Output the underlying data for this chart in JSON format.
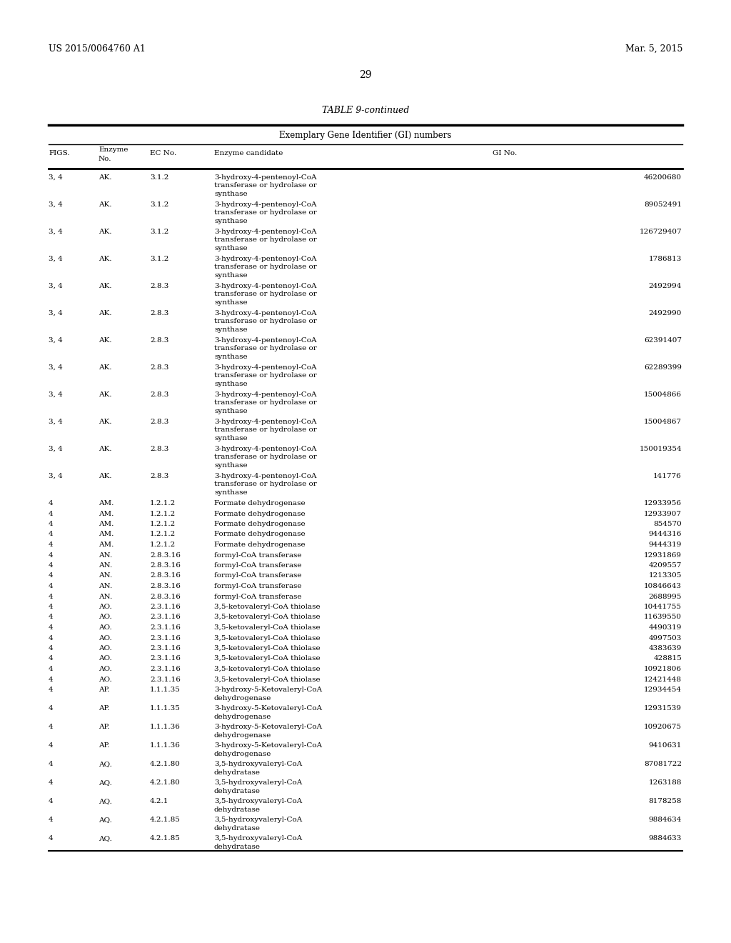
{
  "header_left": "US 2015/0064760 A1",
  "header_right": "Mar. 5, 2015",
  "page_number": "29",
  "table_title": "TABLE 9-continued",
  "table_subtitle": "Exemplary Gene Identifier (GI) numbers",
  "rows": [
    [
      "3, 4",
      "AK.",
      "3.1.2",
      "3-hydroxy-4-pentenoyl-CoA\ntransferase or hydrolase or\nsynthase",
      "46200680"
    ],
    [
      "3, 4",
      "AK.",
      "3.1.2",
      "3-hydroxy-4-pentenoyl-CoA\ntransferase or hydrolase or\nsynthase",
      "89052491"
    ],
    [
      "3, 4",
      "AK.",
      "3.1.2",
      "3-hydroxy-4-pentenoyl-CoA\ntransferase or hydrolase or\nsynthase",
      "126729407"
    ],
    [
      "3, 4",
      "AK.",
      "3.1.2",
      "3-hydroxy-4-pentenoyl-CoA\ntransferase or hydrolase or\nsynthase",
      "1786813"
    ],
    [
      "3, 4",
      "AK.",
      "2.8.3",
      "3-hydroxy-4-pentenoyl-CoA\ntransferase or hydrolase or\nsynthase",
      "2492994"
    ],
    [
      "3, 4",
      "AK.",
      "2.8.3",
      "3-hydroxy-4-pentenoyl-CoA\ntransferase or hydrolase or\nsynthase",
      "2492990"
    ],
    [
      "3, 4",
      "AK.",
      "2.8.3",
      "3-hydroxy-4-pentenoyl-CoA\ntransferase or hydrolase or\nsynthase",
      "62391407"
    ],
    [
      "3, 4",
      "AK.",
      "2.8.3",
      "3-hydroxy-4-pentenoyl-CoA\ntransferase or hydrolase or\nsynthase",
      "62289399"
    ],
    [
      "3, 4",
      "AK.",
      "2.8.3",
      "3-hydroxy-4-pentenoyl-CoA\ntransferase or hydrolase or\nsynthase",
      "15004866"
    ],
    [
      "3, 4",
      "AK.",
      "2.8.3",
      "3-hydroxy-4-pentenoyl-CoA\ntransferase or hydrolase or\nsynthase",
      "15004867"
    ],
    [
      "3, 4",
      "AK.",
      "2.8.3",
      "3-hydroxy-4-pentenoyl-CoA\ntransferase or hydrolase or\nsynthase",
      "150019354"
    ],
    [
      "3, 4",
      "AK.",
      "2.8.3",
      "3-hydroxy-4-pentenoyl-CoA\ntransferase or hydrolase or\nsynthase",
      "141776"
    ],
    [
      "4",
      "AM.",
      "1.2.1.2",
      "Formate dehydrogenase",
      "12933956"
    ],
    [
      "4",
      "AM.",
      "1.2.1.2",
      "Formate dehydrogenase",
      "12933907"
    ],
    [
      "4",
      "AM.",
      "1.2.1.2",
      "Formate dehydrogenase",
      "854570"
    ],
    [
      "4",
      "AM.",
      "1.2.1.2",
      "Formate dehydrogenase",
      "9444316"
    ],
    [
      "4",
      "AM.",
      "1.2.1.2",
      "Formate dehydrogenase",
      "9444319"
    ],
    [
      "4",
      "AN.",
      "2.8.3.16",
      "formyl-CoA transferase",
      "12931869"
    ],
    [
      "4",
      "AN.",
      "2.8.3.16",
      "formyl-CoA transferase",
      "4209557"
    ],
    [
      "4",
      "AN.",
      "2.8.3.16",
      "formyl-CoA transferase",
      "1213305"
    ],
    [
      "4",
      "AN.",
      "2.8.3.16",
      "formyl-CoA transferase",
      "10846643"
    ],
    [
      "4",
      "AN.",
      "2.8.3.16",
      "formyl-CoA transferase",
      "2688995"
    ],
    [
      "4",
      "AO.",
      "2.3.1.16",
      "3,5-ketovaleryl-CoA thiolase",
      "10441755"
    ],
    [
      "4",
      "AO.",
      "2.3.1.16",
      "3,5-ketovaleryl-CoA thiolase",
      "11639550"
    ],
    [
      "4",
      "AO.",
      "2.3.1.16",
      "3,5-ketovaleryl-CoA thiolase",
      "4490319"
    ],
    [
      "4",
      "AO.",
      "2.3.1.16",
      "3,5-ketovaleryl-CoA thiolase",
      "4997503"
    ],
    [
      "4",
      "AO.",
      "2.3.1.16",
      "3,5-ketovaleryl-CoA thiolase",
      "4383639"
    ],
    [
      "4",
      "AO.",
      "2.3.1.16",
      "3,5-ketovaleryl-CoA thiolase",
      "428815"
    ],
    [
      "4",
      "AO.",
      "2.3.1.16",
      "3,5-ketovaleryl-CoA thiolase",
      "10921806"
    ],
    [
      "4",
      "AO.",
      "2.3.1.16",
      "3,5-ketovaleryl-CoA thiolase",
      "12421448"
    ],
    [
      "4",
      "AP.",
      "1.1.1.35",
      "3-hydroxy-5-Ketovaleryl-CoA\ndehydrogenase",
      "12934454"
    ],
    [
      "4",
      "AP.",
      "1.1.1.35",
      "3-hydroxy-5-Ketovaleryl-CoA\ndehydrogenase",
      "12931539"
    ],
    [
      "4",
      "AP.",
      "1.1.1.36",
      "3-hydroxy-5-Ketovaleryl-CoA\ndehydrogenase",
      "10920675"
    ],
    [
      "4",
      "AP.",
      "1.1.1.36",
      "3-hydroxy-5-Ketovaleryl-CoA\ndehydrogenase",
      "9410631"
    ],
    [
      "4",
      "AQ.",
      "4.2.1.80",
      "3,5-hydroxyvaleryl-CoA\ndehydratase",
      "87081722"
    ],
    [
      "4",
      "AQ.",
      "4.2.1.80",
      "3,5-hydroxyvaleryl-CoA\ndehydratase",
      "1263188"
    ],
    [
      "4",
      "AQ.",
      "4.2.1",
      "3,5-hydroxyvaleryl-CoA\ndehydratase",
      "8178258"
    ],
    [
      "4",
      "AQ.",
      "4.2.1.85",
      "3,5-hydroxyvaleryl-CoA\ndehydratase",
      "9884634"
    ],
    [
      "4",
      "AQ.",
      "4.2.1.85",
      "3,5-hydroxyvaleryl-CoA\ndehydratase",
      "9884633"
    ]
  ],
  "bg_color": "#ffffff",
  "text_color": "#000000",
  "font_size": 7.5,
  "small_font_size": 7.0
}
